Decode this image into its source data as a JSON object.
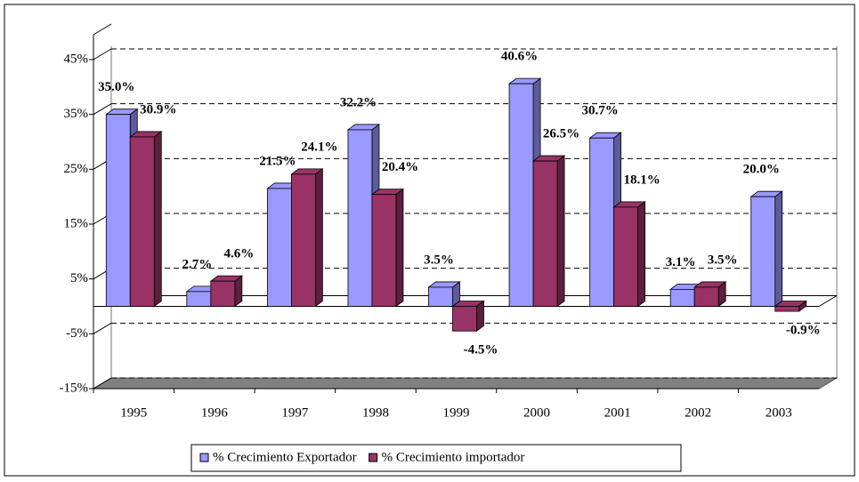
{
  "chart_data": {
    "type": "bar3d",
    "categories": [
      "1995",
      "1996",
      "1997",
      "1998",
      "1999",
      "2000",
      "2001",
      "2002",
      "2003"
    ],
    "series": [
      {
        "name": "% Crecimiento Exportador",
        "color": "#9999ff",
        "values": [
          35.0,
          2.7,
          21.5,
          32.2,
          3.5,
          40.6,
          30.7,
          3.1,
          20.0
        ],
        "value_labels": [
          "35.0%",
          "2.7%",
          "21.5%",
          "32.2%",
          "3.5%",
          "40.6%",
          "30.7%",
          "3.1%",
          "20.0%"
        ]
      },
      {
        "name": "% Crecimiento importador",
        "color": "#993366",
        "values": [
          30.9,
          4.6,
          24.1,
          20.4,
          -4.5,
          26.5,
          18.1,
          3.5,
          -0.9
        ],
        "value_labels": [
          "30.9%",
          "4.6%",
          "24.1%",
          "20.4%",
          "-4.5%",
          "26.5%",
          "18.1%",
          "3.5%",
          "-0.9%"
        ]
      }
    ],
    "ylim": [
      -15,
      45
    ],
    "yticks": [
      {
        "value": -15,
        "label": "-15%"
      },
      {
        "value": -5,
        "label": "-5%"
      },
      {
        "value": 5,
        "label": "5%"
      },
      {
        "value": 15,
        "label": "15%"
      },
      {
        "value": 25,
        "label": "25%"
      },
      {
        "value": 35,
        "label": "35%"
      },
      {
        "value": 45,
        "label": "45%"
      }
    ],
    "grid": true,
    "legend": "bottom"
  }
}
